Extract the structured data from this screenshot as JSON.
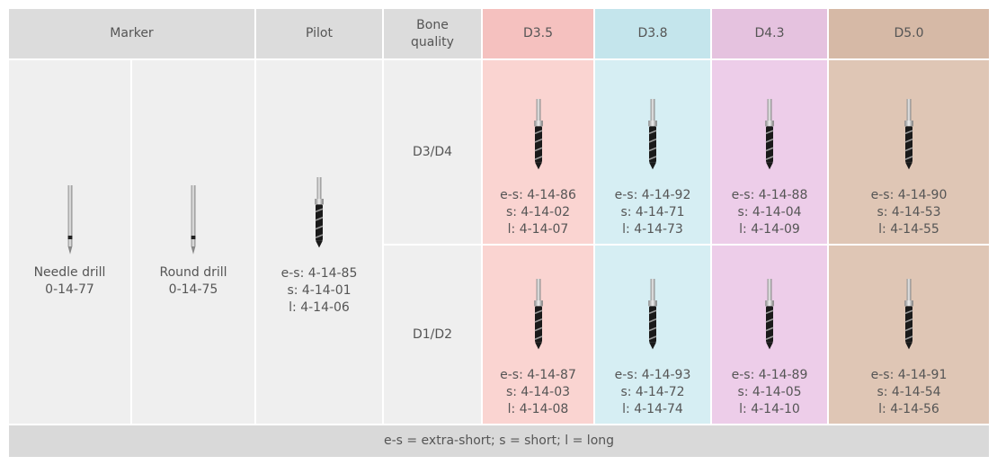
{
  "header": [
    "Marker",
    "Pilot",
    "Bone quality",
    "D3.5",
    "D3.8",
    "D4.3",
    "D5.0"
  ],
  "markers": [
    {
      "name": "Needle drill",
      "code": "0-14-77"
    },
    {
      "name": "Round drill",
      "code": "0-14-75"
    }
  ],
  "pilot": [
    "e-s: 4-14-85",
    "s: 4-14-01",
    "l: 4-14-06"
  ],
  "rows": [
    {
      "bone": "D3/D4",
      "cells": [
        [
          "e-s: 4-14-86",
          "s: 4-14-02",
          "l: 4-14-07"
        ],
        [
          "e-s: 4-14-92",
          "s: 4-14-71",
          "l: 4-14-73"
        ],
        [
          "e-s: 4-14-88",
          "s: 4-14-04",
          "l: 4-14-09"
        ],
        [
          "e-s: 4-14-90",
          "s: 4-14-53",
          "l: 4-14-55"
        ]
      ]
    },
    {
      "bone": "D1/D2",
      "cells": [
        [
          "e-s: 4-14-87",
          "s: 4-14-03",
          "l: 4-14-08"
        ],
        [
          "e-s: 4-14-93",
          "s: 4-14-72",
          "l: 4-14-74"
        ],
        [
          "e-s: 4-14-89",
          "s: 4-14-05",
          "l: 4-14-10"
        ],
        [
          "e-s: 4-14-91",
          "s: 4-14-54",
          "l: 4-14-56"
        ]
      ]
    }
  ],
  "footer": "e-s = extra-short; s = short; l = long"
}
